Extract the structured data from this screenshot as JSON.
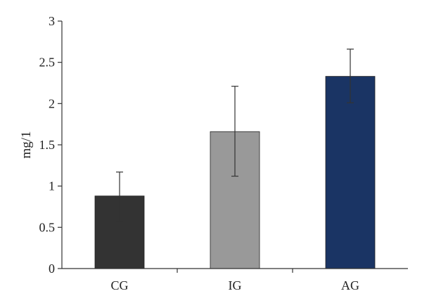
{
  "chart_data": {
    "type": "bar",
    "title": "",
    "xlabel": "",
    "ylabel": "mg/1",
    "categories": [
      "CG",
      "IG",
      "AG"
    ],
    "values": [
      0.88,
      1.66,
      2.33
    ],
    "error_low": [
      0.56,
      1.12,
      2.01
    ],
    "error_high": [
      1.17,
      2.21,
      2.66
    ],
    "bar_colors": [
      "#333333",
      "#999999",
      "#1a3464"
    ],
    "ylim": [
      0,
      3
    ],
    "yticks": [
      0,
      0.5,
      1,
      1.5,
      2,
      2.5,
      3
    ],
    "ytick_labels": [
      "0",
      "0.5",
      "1",
      "1.5",
      "2",
      "2.5",
      "3"
    ],
    "grid": false,
    "legend": "none"
  }
}
